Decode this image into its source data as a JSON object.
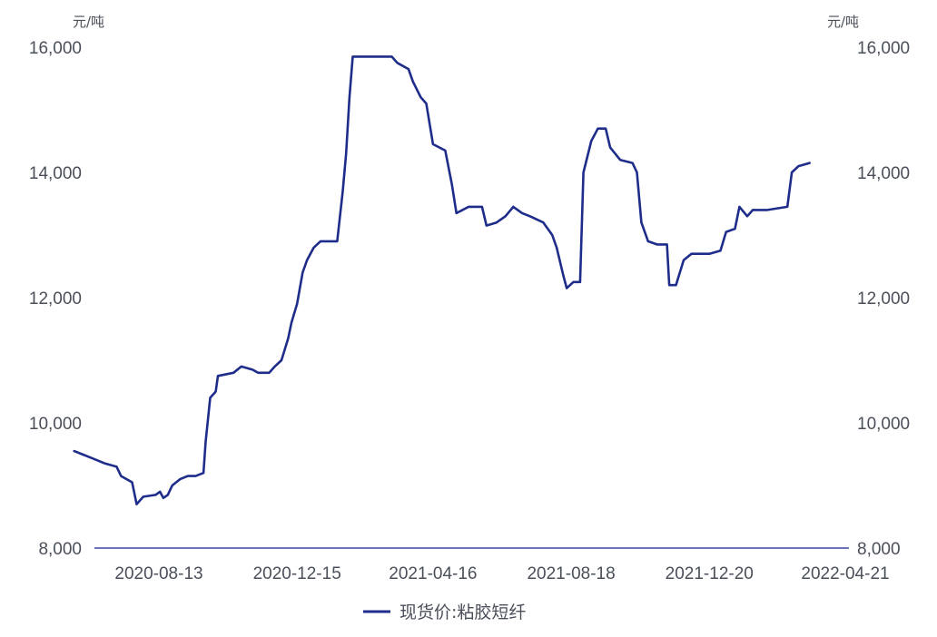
{
  "chart_data": {
    "type": "line",
    "left_unit": "元/吨",
    "right_unit": "元/吨",
    "ylim": [
      8000,
      16000
    ],
    "yticks": [
      "8,000",
      "10,000",
      "12,000",
      "14,000",
      "16,000"
    ],
    "ytick_values": [
      8000,
      10000,
      12000,
      14000,
      16000
    ],
    "xlim": [
      "2020-05-28",
      "2022-04-25"
    ],
    "xticks": [
      "2020-08-13",
      "2020-12-15",
      "2021-04-16",
      "2021-08-18",
      "2021-12-20",
      "2022-04-21"
    ],
    "grid": false,
    "legend_position": "bottom-center",
    "color": "#1f2d8a",
    "series": [
      {
        "name": "现货价:粘胶短纤",
        "points": [
          [
            "2020-05-29",
            9550
          ],
          [
            "2020-06-05",
            9500
          ],
          [
            "2020-06-12",
            9450
          ],
          [
            "2020-06-19",
            9400
          ],
          [
            "2020-06-26",
            9350
          ],
          [
            "2020-07-06",
            9300
          ],
          [
            "2020-07-10",
            9150
          ],
          [
            "2020-07-20",
            9050
          ],
          [
            "2020-07-24",
            8700
          ],
          [
            "2020-07-30",
            8820
          ],
          [
            "2020-08-10",
            8850
          ],
          [
            "2020-08-14",
            8900
          ],
          [
            "2020-08-17",
            8800
          ],
          [
            "2020-08-21",
            8850
          ],
          [
            "2020-08-25",
            9000
          ],
          [
            "2020-09-01",
            9100
          ],
          [
            "2020-09-08",
            9150
          ],
          [
            "2020-09-15",
            9150
          ],
          [
            "2020-09-22",
            9200
          ],
          [
            "2020-09-24",
            9700
          ],
          [
            "2020-09-28",
            10400
          ],
          [
            "2020-10-03",
            10500
          ],
          [
            "2020-10-05",
            10750
          ],
          [
            "2020-10-19",
            10800
          ],
          [
            "2020-10-26",
            10900
          ],
          [
            "2020-11-05",
            10850
          ],
          [
            "2020-11-10",
            10800
          ],
          [
            "2020-11-20",
            10800
          ],
          [
            "2020-11-25",
            10900
          ],
          [
            "2020-12-01",
            11000
          ],
          [
            "2020-12-07",
            11350
          ],
          [
            "2020-12-10",
            11600
          ],
          [
            "2020-12-15",
            11900
          ],
          [
            "2020-12-20",
            12400
          ],
          [
            "2020-12-24",
            12600
          ],
          [
            "2020-12-30",
            12800
          ],
          [
            "2021-01-05",
            12900
          ],
          [
            "2021-01-20",
            12900
          ],
          [
            "2021-01-25",
            13700
          ],
          [
            "2021-01-28",
            14300
          ],
          [
            "2021-01-31",
            15200
          ],
          [
            "2021-02-03",
            15850
          ],
          [
            "2021-03-10",
            15850
          ],
          [
            "2021-03-15",
            15750
          ],
          [
            "2021-03-25",
            15650
          ],
          [
            "2021-03-29",
            15450
          ],
          [
            "2021-04-05",
            15200
          ],
          [
            "2021-04-10",
            15100
          ],
          [
            "2021-04-16",
            14450
          ],
          [
            "2021-04-27",
            14350
          ],
          [
            "2021-05-03",
            13800
          ],
          [
            "2021-05-07",
            13350
          ],
          [
            "2021-05-18",
            13450
          ],
          [
            "2021-05-30",
            13450
          ],
          [
            "2021-06-03",
            13150
          ],
          [
            "2021-06-12",
            13200
          ],
          [
            "2021-06-20",
            13300
          ],
          [
            "2021-06-27",
            13450
          ],
          [
            "2021-07-05",
            13350
          ],
          [
            "2021-07-12",
            13300
          ],
          [
            "2021-07-24",
            13200
          ],
          [
            "2021-08-01",
            13000
          ],
          [
            "2021-08-05",
            12800
          ],
          [
            "2021-08-11",
            12350
          ],
          [
            "2021-08-14",
            12150
          ],
          [
            "2021-08-20",
            12250
          ],
          [
            "2021-08-26",
            12250
          ],
          [
            "2021-08-29",
            14000
          ],
          [
            "2021-09-05",
            14500
          ],
          [
            "2021-09-11",
            14700
          ],
          [
            "2021-09-18",
            14700
          ],
          [
            "2021-09-22",
            14400
          ],
          [
            "2021-10-01",
            14200
          ],
          [
            "2021-10-12",
            14150
          ],
          [
            "2021-10-16",
            14000
          ],
          [
            "2021-10-20",
            13200
          ],
          [
            "2021-10-26",
            12900
          ],
          [
            "2021-11-03",
            12850
          ],
          [
            "2021-11-12",
            12850
          ],
          [
            "2021-11-14",
            12200
          ],
          [
            "2021-11-20",
            12200
          ],
          [
            "2021-11-27",
            12600
          ],
          [
            "2021-12-04",
            12700
          ],
          [
            "2021-12-20",
            12700
          ],
          [
            "2021-12-30",
            12750
          ],
          [
            "2022-01-04",
            13050
          ],
          [
            "2022-01-12",
            13100
          ],
          [
            "2022-01-16",
            13450
          ],
          [
            "2022-01-23",
            13300
          ],
          [
            "2022-01-28",
            13400
          ],
          [
            "2022-02-10",
            13400
          ],
          [
            "2022-02-28",
            13450
          ],
          [
            "2022-03-04",
            14000
          ],
          [
            "2022-03-10",
            14100
          ],
          [
            "2022-03-20",
            14150
          ]
        ]
      }
    ]
  }
}
